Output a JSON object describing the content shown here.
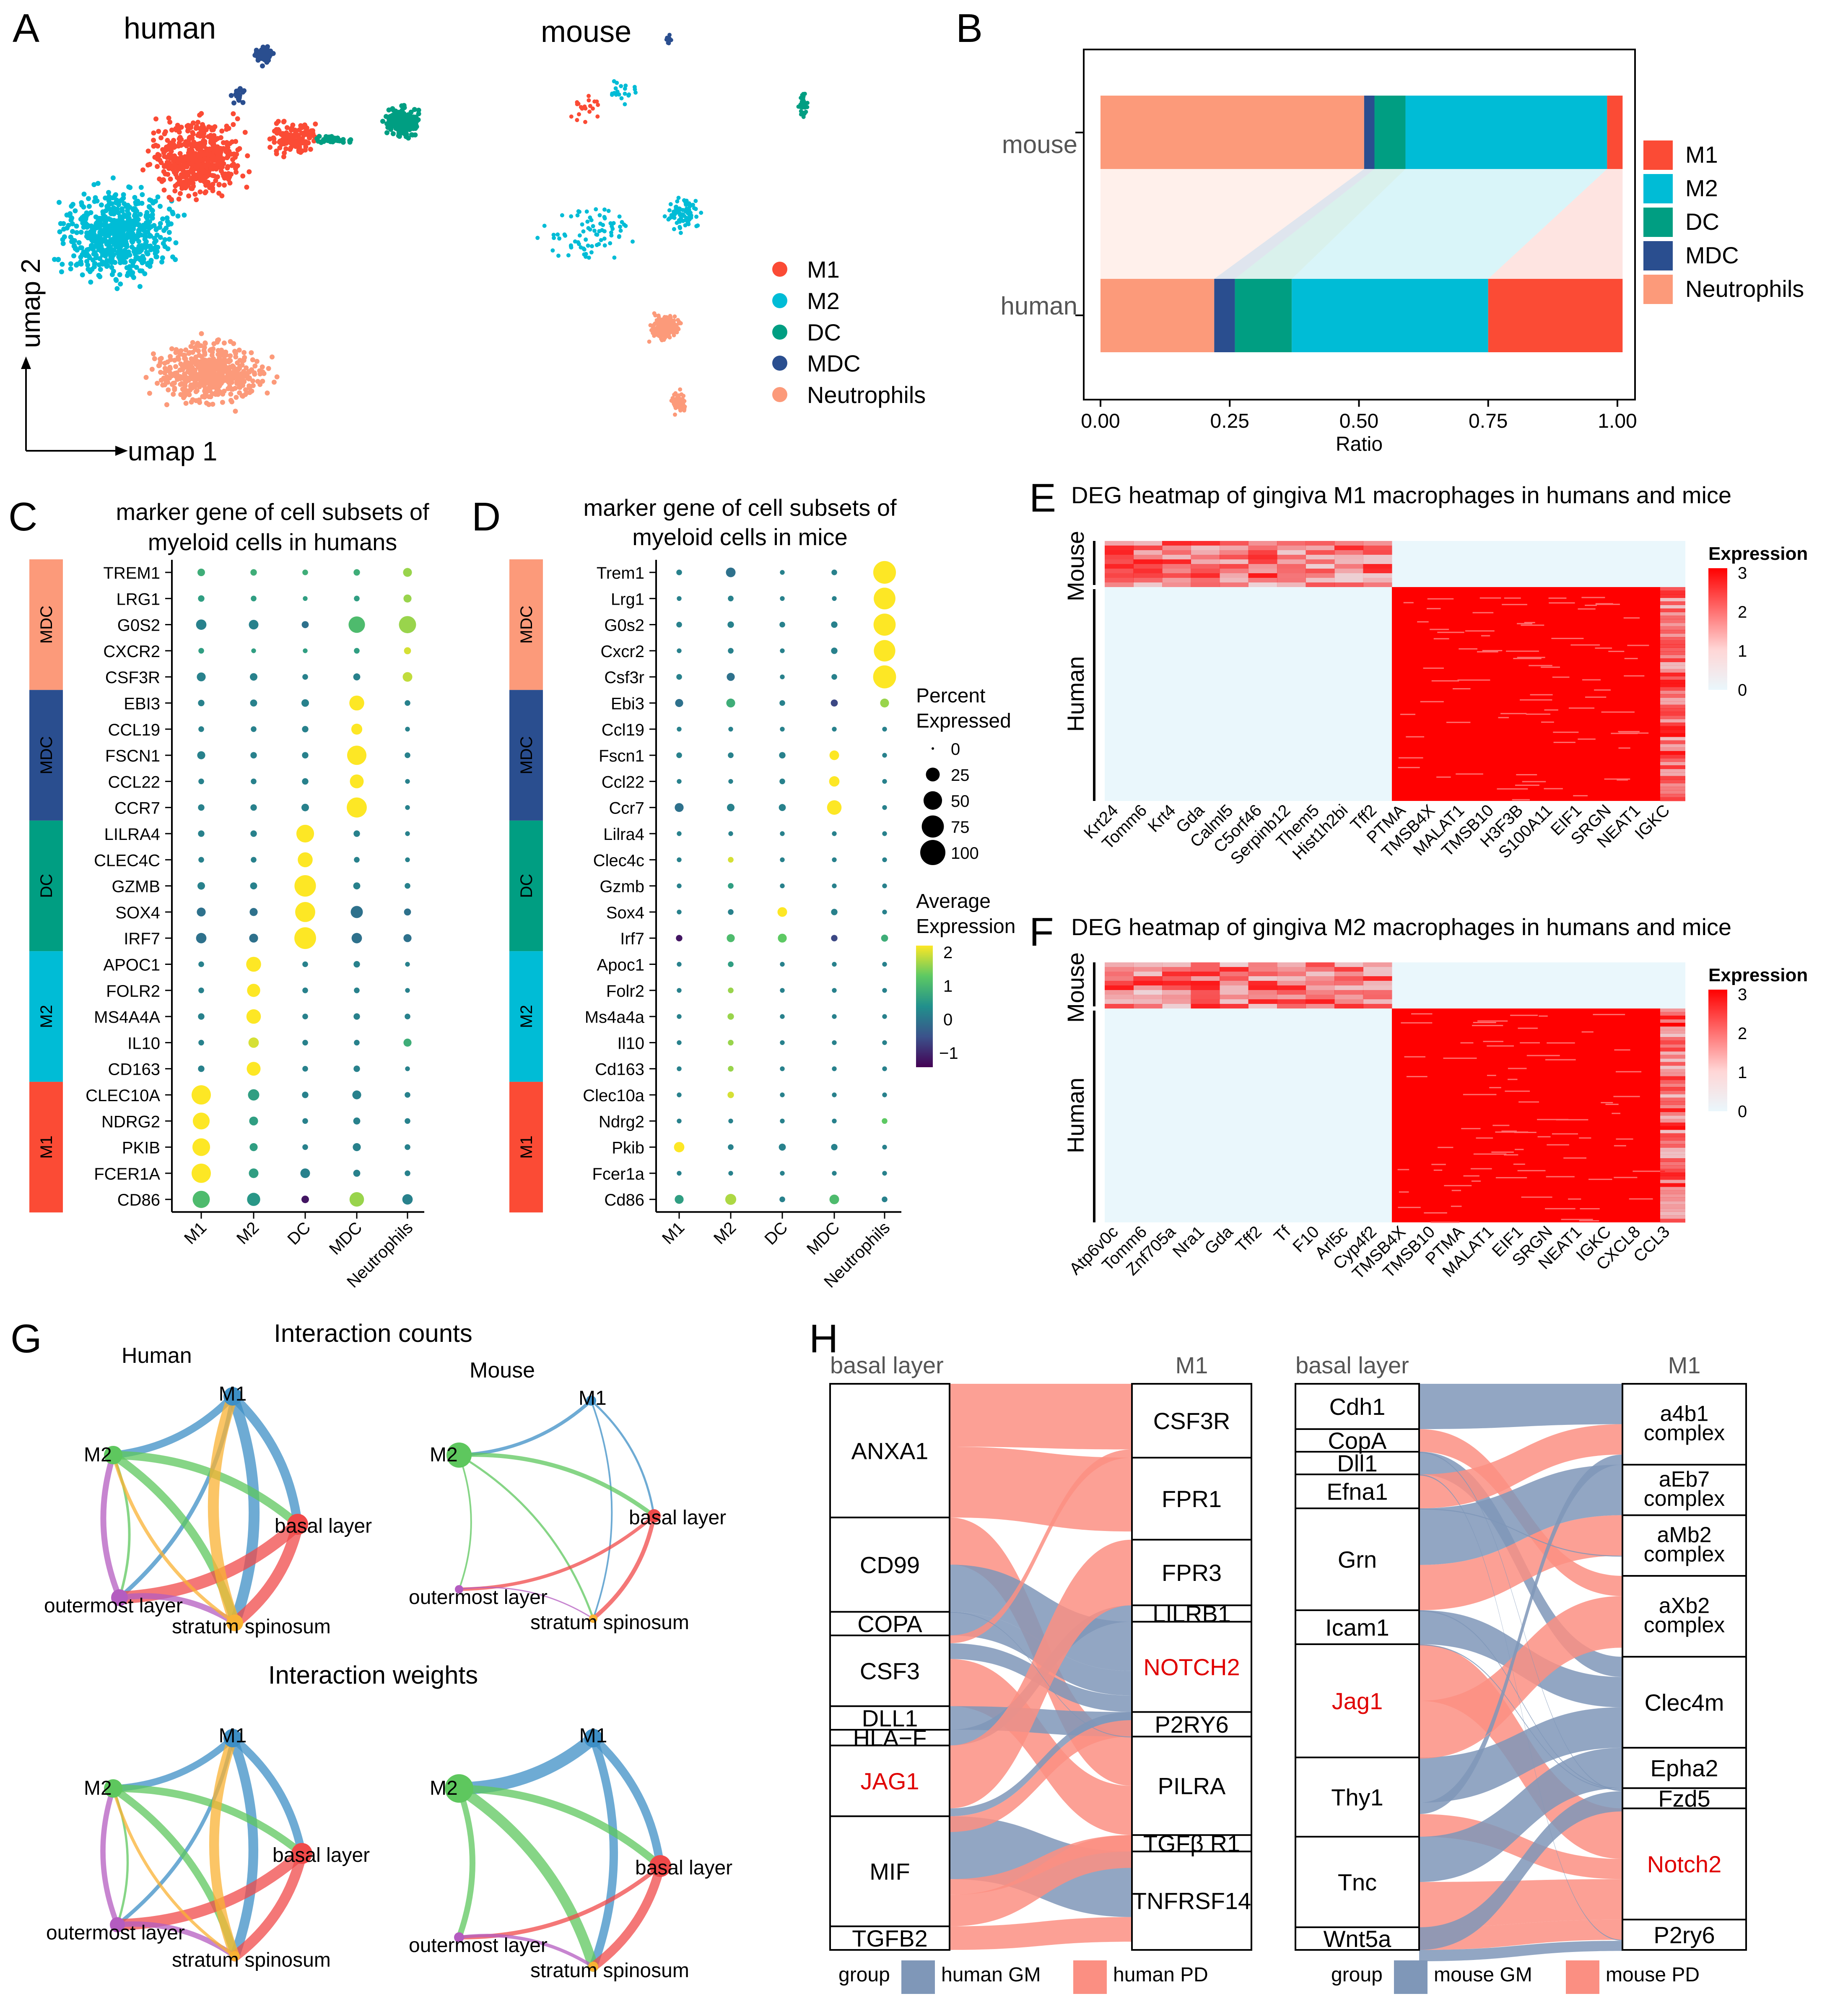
{
  "colors": {
    "M1": "#fb4b35",
    "M2": "#00bcd6",
    "DC": "#009e82",
    "MDC": "#2a4e8f",
    "Neutrophils": "#fc9a7a",
    "heat_high": "#ff0000",
    "heat_low": "#eaf7fc",
    "gm": "#7f97b8",
    "pd": "#fb8f82",
    "human_edge_M1": "#3d8fc6",
    "human_edge_M2": "#5ec75e",
    "basal": "#f04a4a",
    "outer": "#b45cc0",
    "spin": "#f9b233"
  },
  "panel_labels": {
    "A": "A",
    "B": "B",
    "C": "C",
    "D": "D",
    "E": "E",
    "F": "F",
    "G": "G",
    "H": "H"
  },
  "panelA": {
    "human_title": "human",
    "mouse_title": "mouse",
    "axis_y": "umap 2",
    "axis_x": "umap 1",
    "legend": [
      "M1",
      "M2",
      "DC",
      "MDC",
      "Neutrophils"
    ]
  },
  "chart_data": [
    {
      "type": "bar",
      "panel": "B",
      "orientation": "horizontal-stacked",
      "categories": [
        "mouse",
        "human"
      ],
      "series": [
        {
          "name": "Neutrophils",
          "values": [
            0.51,
            0.22
          ]
        },
        {
          "name": "MDC",
          "values": [
            0.02,
            0.04
          ]
        },
        {
          "name": "DC",
          "values": [
            0.06,
            0.11
          ]
        },
        {
          "name": "M2",
          "values": [
            0.39,
            0.38
          ]
        },
        {
          "name": "M1",
          "values": [
            0.03,
            0.26
          ]
        }
      ],
      "xlabel": "Ratio",
      "xlim": [
        0,
        1
      ],
      "ticks": [
        "0.00",
        "0.25",
        "0.50",
        "0.75",
        "1.00"
      ],
      "legend": [
        "M1",
        "M2",
        "DC",
        "MDC",
        "Neutrophils"
      ]
    },
    {
      "type": "scatter",
      "panel": "C",
      "subtype": "dotplot",
      "title_lines": [
        "marker gene of  cell subsets of",
        "myeloid cells in humans"
      ],
      "genes": [
        "TREM1",
        "LRG1",
        "G0S2",
        "CXCR2",
        "CSF3R",
        "EBI3",
        "CCL19",
        "FSCN1",
        "CCL22",
        "CCR7",
        "LILRA4",
        "CLEC4C",
        "GZMB",
        "SOX4",
        "IRF7",
        "APOC1",
        "FOLR2",
        "MS4A4A",
        "IL10",
        "CD163",
        "CLEC10A",
        "NDRG2",
        "PKIB",
        "FCER1A",
        "CD86"
      ],
      "groups": [
        "M1",
        "M2",
        "DC",
        "MDC",
        "Neutrophils"
      ],
      "side_bands": [
        {
          "label": "MDC",
          "color": "Neutrophils",
          "rows": 5
        },
        {
          "label": "MDC",
          "color": "MDC",
          "rows": 5
        },
        {
          "label": "DC",
          "color": "DC",
          "rows": 5
        },
        {
          "label": "M2",
          "color": "M2",
          "rows": 5
        },
        {
          "label": "M1",
          "color": "M1",
          "rows": 5
        }
      ],
      "percent": [
        [
          5,
          3,
          2,
          3,
          8
        ],
        [
          3,
          2,
          1,
          2,
          6
        ],
        [
          12,
          10,
          4,
          38,
          42
        ],
        [
          2,
          1,
          1,
          2,
          4
        ],
        [
          8,
          5,
          2,
          4,
          10
        ],
        [
          3,
          4,
          5,
          30,
          2
        ],
        [
          2,
          2,
          3,
          14,
          1
        ],
        [
          6,
          3,
          3,
          55,
          2
        ],
        [
          2,
          2,
          3,
          25,
          1
        ],
        [
          3,
          3,
          5,
          60,
          1
        ],
        [
          3,
          3,
          45,
          3,
          1
        ],
        [
          2,
          2,
          30,
          2,
          1
        ],
        [
          5,
          4,
          70,
          4,
          2
        ],
        [
          8,
          6,
          60,
          18,
          4
        ],
        [
          12,
          8,
          72,
          12,
          6
        ],
        [
          2,
          30,
          2,
          3,
          1
        ],
        [
          2,
          22,
          2,
          2,
          1
        ],
        [
          3,
          28,
          2,
          3,
          2
        ],
        [
          2,
          12,
          2,
          2,
          6
        ],
        [
          3,
          25,
          2,
          3,
          1
        ],
        [
          55,
          15,
          3,
          8,
          2
        ],
        [
          40,
          8,
          2,
          4,
          2
        ],
        [
          45,
          6,
          2,
          6,
          2
        ],
        [
          55,
          10,
          10,
          4,
          2
        ],
        [
          42,
          22,
          5,
          28,
          12
        ]
      ],
      "expression": [
        [
          0.8,
          0.8,
          0.8,
          0.8,
          1.5
        ],
        [
          0.6,
          0.6,
          0.6,
          0.6,
          1.5
        ],
        [
          0.2,
          0.2,
          0.0,
          1.0,
          1.5
        ],
        [
          0.6,
          0.6,
          0.6,
          0.6,
          1.8
        ],
        [
          0.2,
          0.2,
          0.2,
          0.2,
          1.7
        ],
        [
          0.2,
          0.2,
          0.2,
          2.0,
          0.2
        ],
        [
          0.2,
          0.2,
          0.2,
          2.0,
          0.2
        ],
        [
          0.2,
          0.2,
          0.2,
          2.0,
          0.2
        ],
        [
          0.2,
          0.2,
          0.2,
          2.0,
          0.2
        ],
        [
          0.2,
          0.2,
          0.2,
          2.0,
          0.2
        ],
        [
          0.2,
          0.2,
          2.0,
          0.2,
          0.2
        ],
        [
          0.2,
          0.2,
          2.0,
          0.2,
          0.2
        ],
        [
          0.2,
          0.2,
          2.0,
          0.2,
          0.2
        ],
        [
          0.0,
          0.0,
          2.0,
          0.0,
          0.0
        ],
        [
          0.0,
          0.0,
          2.0,
          0.0,
          0.0
        ],
        [
          0.2,
          2.0,
          0.2,
          0.2,
          0.2
        ],
        [
          0.2,
          2.0,
          0.2,
          0.2,
          0.2
        ],
        [
          0.2,
          2.0,
          0.2,
          0.2,
          0.2
        ],
        [
          0.2,
          1.8,
          0.2,
          0.2,
          0.8
        ],
        [
          0.2,
          2.0,
          0.2,
          0.2,
          0.2
        ],
        [
          2.0,
          0.6,
          0.2,
          0.2,
          0.2
        ],
        [
          2.0,
          0.6,
          0.2,
          0.2,
          0.2
        ],
        [
          2.0,
          0.6,
          0.2,
          0.2,
          0.2
        ],
        [
          2.0,
          0.6,
          0.2,
          0.2,
          0.2
        ],
        [
          1.0,
          0.5,
          -1.0,
          1.5,
          0.2
        ]
      ]
    },
    {
      "type": "scatter",
      "panel": "D",
      "subtype": "dotplot",
      "title_lines": [
        "marker gene of  cell subsets of",
        "myeloid cells in mice"
      ],
      "genes": [
        "Trem1",
        "Lrg1",
        "G0s2",
        "Cxcr2",
        "Csf3r",
        "Ebi3",
        "Ccl19",
        "Fscn1",
        "Ccl22",
        "Ccr7",
        "Lilra4",
        "Clec4c",
        "Gzmb",
        "Sox4",
        "Irf7",
        "Apoc1",
        "Folr2",
        "Ms4a4a",
        "Il10",
        "Cd163",
        "Clec10a",
        "Ndrg2",
        "Pkib",
        "Fcer1a",
        "Cd86"
      ],
      "groups": [
        "M1",
        "M2",
        "DC",
        "MDC",
        "Neutrophils"
      ],
      "side_bands": [
        {
          "label": "MDC",
          "color": "Neutrophils",
          "rows": 5
        },
        {
          "label": "MDC",
          "color": "MDC",
          "rows": 5
        },
        {
          "label": "DC",
          "color": "DC",
          "rows": 5
        },
        {
          "label": "M2",
          "color": "M2",
          "rows": 5
        },
        {
          "label": "M1",
          "color": "M1",
          "rows": 5
        }
      ],
      "percent": [
        [
          2,
          10,
          1,
          2,
          80
        ],
        [
          1,
          2,
          1,
          1,
          72
        ],
        [
          2,
          3,
          2,
          3,
          75
        ],
        [
          1,
          2,
          1,
          3,
          70
        ],
        [
          2,
          6,
          1,
          2,
          82
        ],
        [
          6,
          8,
          2,
          4,
          8
        ],
        [
          1,
          1,
          1,
          1,
          1
        ],
        [
          2,
          2,
          3,
          10,
          1
        ],
        [
          1,
          1,
          2,
          12,
          1
        ],
        [
          8,
          5,
          4,
          28,
          1
        ],
        [
          1,
          1,
          1,
          1,
          1
        ],
        [
          1,
          2,
          1,
          1,
          1
        ],
        [
          1,
          2,
          1,
          1,
          1
        ],
        [
          1,
          2,
          10,
          3,
          1
        ],
        [
          3,
          6,
          8,
          3,
          4
        ],
        [
          1,
          2,
          1,
          1,
          1
        ],
        [
          1,
          2,
          1,
          1,
          1
        ],
        [
          1,
          3,
          1,
          1,
          1
        ],
        [
          1,
          2,
          1,
          1,
          1
        ],
        [
          1,
          2,
          1,
          1,
          1
        ],
        [
          1,
          3,
          1,
          1,
          1
        ],
        [
          1,
          1,
          1,
          1,
          2
        ],
        [
          12,
          2,
          4,
          3,
          1
        ],
        [
          1,
          1,
          1,
          1,
          1
        ],
        [
          8,
          14,
          2,
          10,
          2
        ]
      ],
      "expression": [
        [
          0.2,
          0.0,
          0.2,
          0.2,
          2.0
        ],
        [
          0.2,
          0.2,
          0.2,
          0.2,
          2.0
        ],
        [
          0.2,
          0.2,
          0.2,
          0.2,
          2.0
        ],
        [
          0.2,
          0.2,
          0.2,
          0.2,
          2.0
        ],
        [
          0.2,
          0.0,
          0.2,
          0.2,
          2.0
        ],
        [
          0.0,
          0.8,
          0.2,
          -0.5,
          1.5
        ],
        [
          0.2,
          0.2,
          0.2,
          0.2,
          0.2
        ],
        [
          0.2,
          0.2,
          0.2,
          2.0,
          0.2
        ],
        [
          0.2,
          0.2,
          0.2,
          2.0,
          0.2
        ],
        [
          0.0,
          0.2,
          0.2,
          2.0,
          0.2
        ],
        [
          0.2,
          0.2,
          0.2,
          0.2,
          0.2
        ],
        [
          0.2,
          1.8,
          0.2,
          0.2,
          0.2
        ],
        [
          0.2,
          0.6,
          0.2,
          0.2,
          0.2
        ],
        [
          0.2,
          0.2,
          2.0,
          0.2,
          0.2
        ],
        [
          -1.0,
          1.0,
          1.2,
          -0.5,
          0.8
        ],
        [
          0.2,
          0.6,
          0.2,
          0.2,
          0.2
        ],
        [
          0.2,
          1.5,
          0.2,
          0.2,
          0.2
        ],
        [
          0.2,
          1.5,
          0.2,
          0.2,
          0.2
        ],
        [
          0.2,
          1.5,
          0.2,
          0.2,
          0.2
        ],
        [
          0.2,
          1.5,
          0.2,
          0.2,
          0.2
        ],
        [
          0.2,
          1.8,
          0.2,
          0.2,
          0.2
        ],
        [
          0.2,
          0.2,
          0.2,
          0.2,
          1.2
        ],
        [
          2.0,
          0.2,
          0.2,
          0.2,
          0.2
        ],
        [
          0.2,
          0.2,
          0.2,
          0.2,
          0.2
        ],
        [
          0.6,
          1.6,
          0.2,
          1.0,
          0.2
        ]
      ]
    },
    {
      "type": "heatmap",
      "panel": "E",
      "title": "DEG heatmap of gingiva M1 macrophages in humans and mice",
      "row_groups": [
        "Mouse",
        "Human"
      ],
      "mouse_genes": [
        "Krt24",
        "Tomm6",
        "Krt4",
        "Gda",
        "Calml5",
        "C5orf46",
        "Serpinb12",
        "Them5",
        "Hist1h2bi",
        "Tff2"
      ],
      "human_genes": [
        "PTMA",
        "TMSB4X",
        "MALAT1",
        "TMSB10",
        "H3F3B",
        "S100A11",
        "EIF1",
        "SRGN",
        "NEAT1",
        "IGKC"
      ],
      "legend_title": "Expression",
      "scale": [
        0,
        1,
        2,
        3
      ]
    },
    {
      "type": "heatmap",
      "panel": "F",
      "title": "DEG heatmap of gingiva M2 macrophages in humans and mice",
      "row_groups": [
        "Mouse",
        "Human"
      ],
      "mouse_genes": [
        "Atp6v0c",
        "Tomm6",
        "Znf705a",
        "Nra1",
        "Gda",
        "Tff2",
        "Tf",
        "F10",
        "Arl5c",
        "Cyp4f2"
      ],
      "human_genes": [
        "TMSB4X",
        "TMSB10",
        "PTMA",
        "MALAT1",
        "EIF1",
        "SRGN",
        "NEAT1",
        "IGKC",
        "CXCL8",
        "CCL3"
      ],
      "legend_title": "Expression",
      "scale": [
        0,
        1,
        2,
        3
      ]
    }
  ],
  "panelB_legend": [
    "M1",
    "M2",
    "DC",
    "MDC",
    "Neutrophils"
  ],
  "panelC_axis": {
    "size_title_1": "Percent",
    "size_title_2": "Expressed",
    "sizes": [
      "0",
      "25",
      "50",
      "75",
      "100"
    ],
    "color_title_1": "Average",
    "color_title_2": "Expression",
    "colors": [
      "2",
      "1",
      "0",
      "−1"
    ]
  },
  "panelG": {
    "title_counts": "Interaction counts",
    "title_weights": "Interaction weights",
    "human": "Human",
    "mouse": "Mouse",
    "nodes": [
      "M1",
      "M2",
      "basal layer",
      "outermost layer",
      "stratum spinosum"
    ]
  },
  "panelH": {
    "left": {
      "ligand_header": "basal layer",
      "receptor_header": "M1",
      "ligands": [
        "ANXA1",
        "CD99",
        "COPA",
        "CSF3",
        "DLL1",
        "HLA−F",
        "JAG1",
        "MIF",
        "TGFB2"
      ],
      "receptors": [
        "CSF3R",
        "FPR1",
        "FPR3",
        "LILRB1",
        "NOTCH2",
        "P2RY6",
        "PILRA",
        "TGFβ R1",
        "TNFRSF14"
      ],
      "legend_group": "group",
      "legend_a": "human GM",
      "legend_b": "human PD"
    },
    "right": {
      "ligand_header": "basal layer",
      "receptor_header": "M1",
      "ligands": [
        "Cdh1",
        "CopA",
        "Dll1",
        "Efna1",
        "Grn",
        "Icam1",
        "Jag1",
        "Thy1",
        "Tnc",
        "Wnt5a"
      ],
      "receptors": [
        "a4b1 complex",
        "aEb7 complex",
        "aMb2 complex",
        "aXb2 complex",
        "Clec4m",
        "Epha2",
        "Fzd5",
        "Notch2",
        "P2ry6"
      ],
      "legend_group": "group",
      "legend_a": "mouse GM",
      "legend_b": "mouse PD"
    }
  }
}
